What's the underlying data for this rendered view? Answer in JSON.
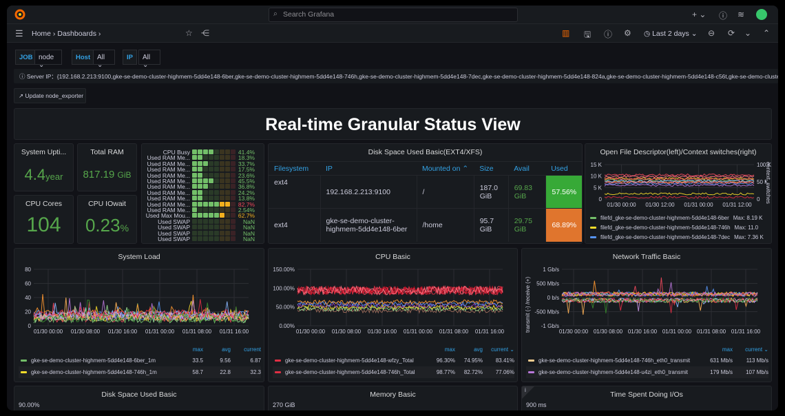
{
  "topbar": {
    "search_placeholder": "Search Grafana",
    "new_label": "+",
    "colors": {
      "logo": "#f46800",
      "avatar": "#37c66b"
    }
  },
  "navbar": {
    "breadcrumbs": [
      "Home",
      "Dashboards"
    ],
    "time_range": "Last 2 days"
  },
  "variables": [
    {
      "label": "JOB",
      "value": "node"
    },
    {
      "label": "Host",
      "value": "All"
    },
    {
      "label": "IP",
      "value": "All"
    }
  ],
  "info": {
    "text": "Server IP：{192.168.2.213:9100,gke-se-demo-cluster-highmem-5dd4e148-6ber,gke-se-demo-cluster-highmem-5dd4e148-746h,gke-se-demo-cluster-highmem-5dd4e148-7dec,gke-se-demo-cluster-highmem-5dd4e148-824a,gke-se-demo-cluster-highmem-5dd4e148-c56t,gke-se-demo-cluster-highmem"
  },
  "update_link": "Update node_exporter",
  "dashboard_title": "Real-time Granular Status View",
  "stats": {
    "uptime": {
      "title": "System Upti...",
      "value": "4.4",
      "unit": "year"
    },
    "ram": {
      "title": "Total RAM",
      "value": "817.19",
      "unit": "GiB"
    },
    "cores": {
      "title": "CPU Cores",
      "value": "104"
    },
    "iowait": {
      "title": "CPU IOwait",
      "value": "0.23",
      "unit": "%"
    }
  },
  "bargauge": {
    "rows": [
      {
        "label": "CPU Busy",
        "value": "41.4%",
        "pct": 41.4
      },
      {
        "label": "Used RAM Me...",
        "value": "18.3%",
        "pct": 18.3
      },
      {
        "label": "Used RAM Me...",
        "value": "33.7%",
        "pct": 33.7
      },
      {
        "label": "Used RAM Me...",
        "value": "17.5%",
        "pct": 17.5
      },
      {
        "label": "Used RAM Me...",
        "value": "23.6%",
        "pct": 23.6
      },
      {
        "label": "Used RAM Me...",
        "value": "45.5%",
        "pct": 45.5
      },
      {
        "label": "Used RAM Me...",
        "value": "36.8%",
        "pct": 36.8
      },
      {
        "label": "Used RAM Me...",
        "value": "24.2%",
        "pct": 24.2
      },
      {
        "label": "Used RAM Me...",
        "value": "13.8%",
        "pct": 13.8
      },
      {
        "label": "Used RAM Me...",
        "value": "82.7%",
        "pct": 82.7
      },
      {
        "label": "Used RAM Me...",
        "value": "2.54%",
        "pct": 2.54
      },
      {
        "label": "Used Max Mou...",
        "value": "62.7%",
        "pct": 62.7
      },
      {
        "label": "Used SWAP",
        "value": "NaN",
        "pct": 0
      },
      {
        "label": "Used SWAP",
        "value": "NaN",
        "pct": 0
      },
      {
        "label": "Used SWAP",
        "value": "NaN",
        "pct": 0
      },
      {
        "label": "Used SWAP",
        "value": "NaN",
        "pct": 0
      }
    ]
  },
  "disk_table": {
    "title": "Disk Space Used Basic(EXT4/XFS)",
    "columns": [
      "Filesystem",
      "IP",
      "Mounted on",
      "Size",
      "Avail",
      "Used"
    ],
    "rows": [
      {
        "fs": "ext4",
        "ip": "192.168.2.213:9100",
        "mount": "/",
        "size": "187.0 GiB",
        "avail": "69.83 GiB",
        "used": "57.56%",
        "used_color": "#37a937"
      },
      {
        "fs": "ext4",
        "ip": "gke-se-demo-cluster-highmem-5dd4e148-6ber",
        "mount": "/home",
        "size": "95.7 GiB",
        "avail": "29.75 GiB",
        "used": "68.89%",
        "used_color": "#e0752d"
      }
    ]
  },
  "openfd": {
    "title": "Open File Descriptor(left)/Context switches(right)",
    "y_ticks": [
      "15 K",
      "10 K",
      "5 K",
      "0"
    ],
    "y2_ticks": [
      "100 K",
      "50 K",
      "0"
    ],
    "y2_label": "context_switches",
    "x_ticks": [
      "01/30 00:00",
      "01/30 12:00",
      "01/31 00:00",
      "01/31 12:00"
    ],
    "legend": [
      {
        "name": "filefd_gke-se-demo-cluster-highmem-5dd4e148-6ber",
        "max": "Max: 8.19 K",
        "color": "#73bf69"
      },
      {
        "name": "filefd_gke-se-demo-cluster-highmem-5dd4e148-746h",
        "max": "Max: 11.0",
        "color": "#fade2a"
      },
      {
        "name": "filefd_gke-se-demo-cluster-highmem-5dd4e148-7dec",
        "max": "Max: 7.36 K",
        "color": "#5794f2"
      }
    ]
  },
  "sysload": {
    "title": "System Load",
    "y_ticks": [
      "80",
      "60",
      "40",
      "20",
      "0"
    ],
    "x_ticks": [
      "01/30 00:00",
      "01/30 08:00",
      "01/30 16:00",
      "01/31 00:00",
      "01/31 08:00",
      "01/31 16:00"
    ],
    "legend_headers": [
      "max",
      "avg",
      "current"
    ],
    "legend": [
      {
        "name": "gke-se-demo-cluster-highmem-5dd4e148-6ber_1m",
        "values": [
          "33.5",
          "9.56",
          "6.87"
        ],
        "color": "#73bf69"
      },
      {
        "name": "gke-se-demo-cluster-highmem-5dd4e148-746h_1m",
        "values": [
          "58.7",
          "22.8",
          "32.3"
        ],
        "color": "#fade2a"
      }
    ]
  },
  "cpubasic": {
    "title": "CPU Basic",
    "y_ticks": [
      "150.00%",
      "100.00%",
      "50.00%",
      "0.00%"
    ],
    "x_ticks": [
      "01/30 00:00",
      "01/30 08:00",
      "01/30 16:00",
      "01/31 00:00",
      "01/31 08:00",
      "01/31 16:00"
    ],
    "legend_headers": [
      "max",
      "avg",
      "current ⌄"
    ],
    "legend": [
      {
        "name": "gke-se-demo-cluster-highmem-5dd4e148-wfzy_Total",
        "values": [
          "96.30%",
          "74.95%",
          "83.41%"
        ],
        "color": "#e02f44"
      },
      {
        "name": "gke-se-demo-cluster-highmem-5dd4e148-746h_Total",
        "values": [
          "98.77%",
          "82.72%",
          "77.06%"
        ],
        "color": "#e02f44"
      }
    ]
  },
  "network": {
    "title": "Network Traffic Basic",
    "y_ticks": [
      "1 Gb/s",
      "500 Mb/s",
      "0 b/s",
      "-500 Mb/s",
      "-1 Gb/s"
    ],
    "y_label": "transmit (-) /receive (+)",
    "x_ticks": [
      "01/30 00:00",
      "01/30 08:00",
      "01/30 16:00",
      "01/31 00:00",
      "01/31 08:00",
      "01/31 16:00"
    ],
    "legend_headers": [
      "max",
      "current ⌄"
    ],
    "legend": [
      {
        "name": "gke-se-demo-cluster-highmem-5dd4e148-746h_eth0_transmit",
        "values": [
          "631 Mb/s",
          "113 Mb/s"
        ],
        "color": "#f2cc8f"
      },
      {
        "name": "gke-se-demo-cluster-highmem-5dd4e148-u4zi_eth0_transmit",
        "values": [
          "179 Mb/s",
          "107 Mb/s"
        ],
        "color": "#b877d9"
      }
    ]
  },
  "bottom": {
    "disk_title": "Disk Space Used Basic",
    "disk_tick": "90.00%",
    "mem_title": "Memory Basic",
    "mem_tick": "270 GiB",
    "io_title": "Time Spent Doing I/Os",
    "io_tick": "900 ms",
    "io_info": "i"
  }
}
